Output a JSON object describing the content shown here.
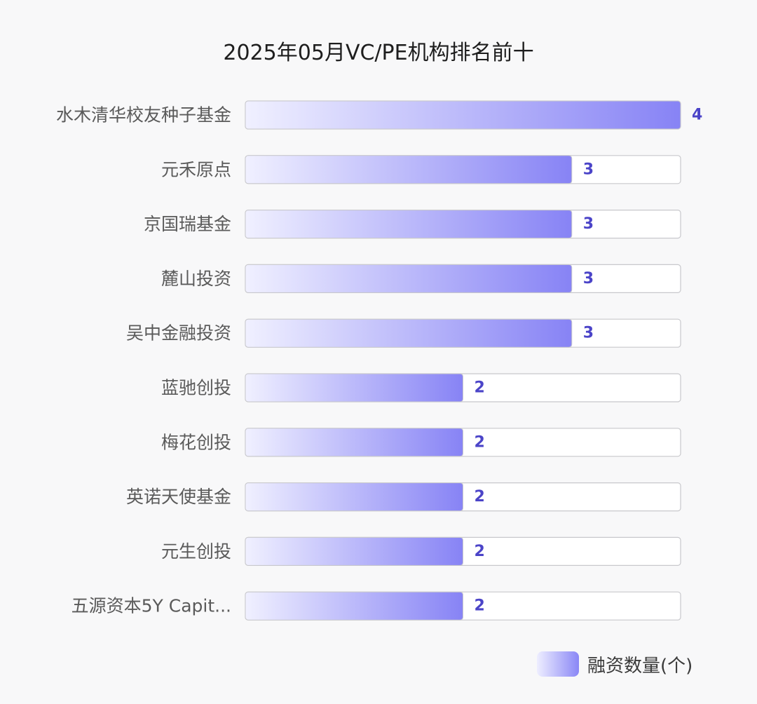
{
  "chart_data": {
    "type": "bar",
    "orientation": "horizontal",
    "title": "2025年05月VC/PE机构排名前十",
    "categories": [
      "水木清华校友种子基金",
      "元禾原点",
      "京国瑞基金",
      "麓山投资",
      "吴中金融投资",
      "蓝驰创投",
      "梅花创投",
      "英诺天使基金",
      "元生创投",
      "五源资本5Y Capit..."
    ],
    "series": [
      {
        "name": "融资数量(个)",
        "values": [
          4,
          3,
          3,
          3,
          3,
          2,
          2,
          2,
          2,
          2
        ]
      }
    ],
    "xlim": [
      0,
      4
    ],
    "grid": false,
    "legend_position": "bottom-right",
    "colors": {
      "bar_start": "#f0f0ff",
      "bar_end": "#8783f5",
      "value_text": "#4b44c8",
      "track_border": "#c8c8cc",
      "track_fill": "#ffffff"
    }
  }
}
